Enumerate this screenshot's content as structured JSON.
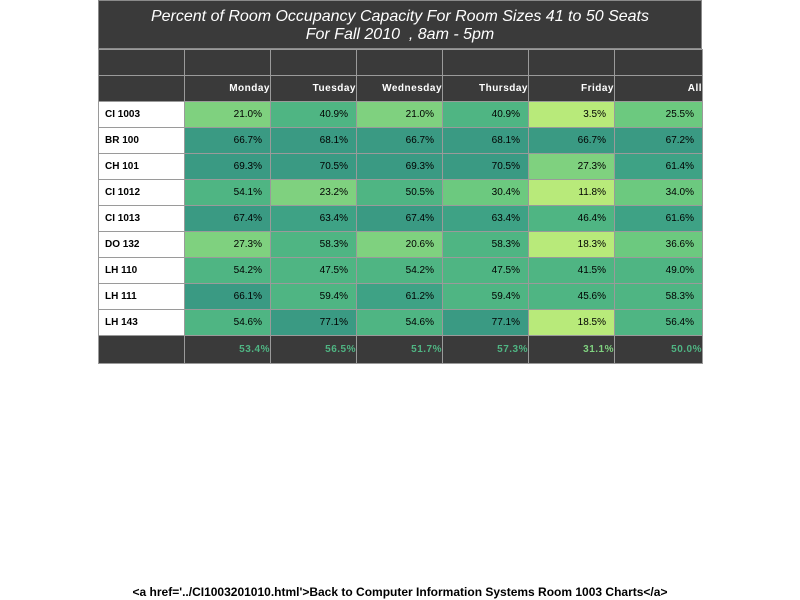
{
  "chart_data": {
    "type": "heatmap",
    "title": "Percent of Room Occupancy Capacity For Room Sizes 41 to 50 Seats",
    "subtitle": "For Fall 2010  , 8am - 5pm",
    "columns": [
      "Monday",
      "Tuesday",
      "Wednesday",
      "Thursday",
      "Friday",
      "All"
    ],
    "rows": [
      {
        "room": "CI 1003",
        "values": [
          "21.0%",
          "40.9%",
          "21.0%",
          "40.9%",
          "3.5%",
          "25.5%"
        ],
        "colors": [
          "#7fd17f",
          "#4fb583",
          "#7fd17f",
          "#4fb583",
          "#b8ea7a",
          "#6cc97f"
        ]
      },
      {
        "room": "BR 100",
        "values": [
          "66.7%",
          "68.1%",
          "66.7%",
          "68.1%",
          "66.7%",
          "67.2%"
        ],
        "colors": [
          "#3a9a83",
          "#3a9a83",
          "#3a9a83",
          "#3a9a83",
          "#3a9a83",
          "#3a9a83"
        ]
      },
      {
        "room": "CH 101",
        "values": [
          "69.3%",
          "70.5%",
          "69.3%",
          "70.5%",
          "27.3%",
          "61.4%"
        ],
        "colors": [
          "#3a9a83",
          "#3a9a83",
          "#3a9a83",
          "#3a9a83",
          "#7fd17f",
          "#3ea285"
        ]
      },
      {
        "room": "CI 1012",
        "values": [
          "54.1%",
          "23.2%",
          "50.5%",
          "30.4%",
          "11.8%",
          "34.0%"
        ],
        "colors": [
          "#4fb583",
          "#7fd17f",
          "#4fb583",
          "#6cc97f",
          "#b8ea7a",
          "#6cc97f"
        ]
      },
      {
        "room": "CI 1013",
        "values": [
          "67.4%",
          "63.4%",
          "67.4%",
          "63.4%",
          "46.4%",
          "61.6%"
        ],
        "colors": [
          "#3a9a83",
          "#3ea285",
          "#3a9a83",
          "#3ea285",
          "#4fb583",
          "#3ea285"
        ]
      },
      {
        "room": "DO 132",
        "values": [
          "27.3%",
          "58.3%",
          "20.6%",
          "58.3%",
          "18.3%",
          "36.6%"
        ],
        "colors": [
          "#7fd17f",
          "#4fb583",
          "#7fd17f",
          "#4fb583",
          "#b8ea7a",
          "#6cc97f"
        ]
      },
      {
        "room": "LH 110",
        "values": [
          "54.2%",
          "47.5%",
          "54.2%",
          "47.5%",
          "41.5%",
          "49.0%"
        ],
        "colors": [
          "#4fb583",
          "#4fb583",
          "#4fb583",
          "#4fb583",
          "#4fb583",
          "#4fb583"
        ]
      },
      {
        "room": "LH 111",
        "values": [
          "66.1%",
          "59.4%",
          "61.2%",
          "59.4%",
          "45.6%",
          "58.3%"
        ],
        "colors": [
          "#3a9a83",
          "#4fb583",
          "#3ea285",
          "#4fb583",
          "#4fb583",
          "#4fb583"
        ]
      },
      {
        "room": "LH 143",
        "values": [
          "54.6%",
          "77.1%",
          "54.6%",
          "77.1%",
          "18.5%",
          "56.4%"
        ],
        "colors": [
          "#4fb583",
          "#3a9a83",
          "#4fb583",
          "#3a9a83",
          "#b8ea7a",
          "#4fb583"
        ]
      }
    ],
    "totals": [
      "53.4%",
      "56.5%",
      "51.7%",
      "57.3%",
      "31.1%",
      "50.0%"
    ],
    "total_colors": [
      "#4fb583",
      "#4fb583",
      "#4fb583",
      "#4fb583",
      "#7fd17f",
      "#4fb583"
    ]
  },
  "footer": {
    "link_text": "<a href='../CI1003201010.html'>Back to Computer Information Systems Room 1003 Charts</a>"
  }
}
